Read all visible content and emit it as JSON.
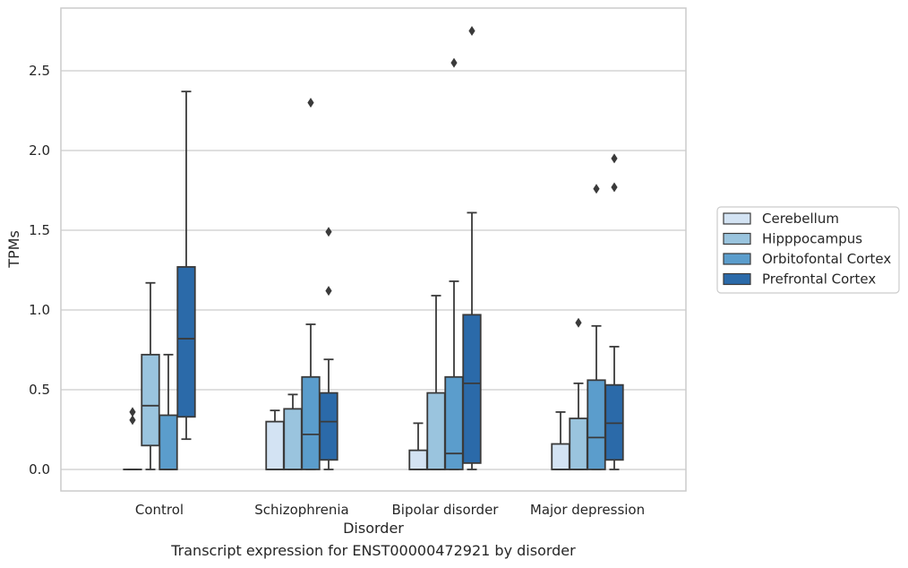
{
  "chart_data": {
    "type": "box",
    "xlabel": "Disorder",
    "ylabel": "TPMs",
    "ylim": [
      -0.13,
      2.9
    ],
    "yticks": [
      "0.0",
      "0.5",
      "1.0",
      "1.5",
      "2.0",
      "2.5"
    ],
    "grid": "horizontal",
    "legend_position": "right",
    "categories": [
      "Control",
      "Schizophrenia",
      "Bipolar disorder",
      "Major depression"
    ],
    "series": [
      {
        "name": "Cerebellum",
        "color": "#d3e3f3",
        "boxes": [
          {
            "whisker_low": 0.0,
            "q1": 0.0,
            "median": 0.0,
            "q3": 0.0,
            "whisker_high": 0.0,
            "outliers": []
          },
          {
            "whisker_low": 0.0,
            "q1": 0.0,
            "median": 0.0,
            "q3": 0.3,
            "whisker_high": 0.37,
            "outliers": []
          },
          {
            "whisker_low": 0.0,
            "q1": 0.0,
            "median": 0.0,
            "q3": 0.12,
            "whisker_high": 0.29,
            "outliers": []
          },
          {
            "whisker_low": 0.0,
            "q1": 0.0,
            "median": 0.0,
            "q3": 0.16,
            "whisker_high": 0.36,
            "outliers": []
          }
        ]
      },
      {
        "name": "Hipppocampus",
        "color": "#9ac4de",
        "boxes": [
          {
            "whisker_low": 0.0,
            "q1": 0.15,
            "median": 0.4,
            "q3": 0.72,
            "whisker_high": 1.17,
            "outliers": []
          },
          {
            "whisker_low": 0.0,
            "q1": 0.0,
            "median": 0.0,
            "q3": 0.38,
            "whisker_high": 0.47,
            "outliers": []
          },
          {
            "whisker_low": 0.0,
            "q1": 0.0,
            "median": 0.0,
            "q3": 0.48,
            "whisker_high": 1.09,
            "outliers": []
          },
          {
            "whisker_low": 0.0,
            "q1": 0.0,
            "median": 0.0,
            "q3": 0.32,
            "whisker_high": 0.54,
            "outliers": [
              0.92
            ]
          }
        ]
      },
      {
        "name": "Orbitofontal Cortex",
        "color": "#5b9dcc",
        "boxes": [
          {
            "whisker_low": 0.0,
            "q1": 0.0,
            "median": 0.0,
            "q3": 0.34,
            "whisker_high": 0.72,
            "outliers": []
          },
          {
            "whisker_low": 0.0,
            "q1": 0.0,
            "median": 0.22,
            "q3": 0.58,
            "whisker_high": 0.91,
            "outliers": [
              2.3
            ]
          },
          {
            "whisker_low": 0.0,
            "q1": 0.0,
            "median": 0.1,
            "q3": 0.58,
            "whisker_high": 1.18,
            "outliers": [
              2.55
            ]
          },
          {
            "whisker_low": 0.0,
            "q1": 0.0,
            "median": 0.2,
            "q3": 0.56,
            "whisker_high": 0.9,
            "outliers": [
              1.76
            ]
          }
        ]
      },
      {
        "name": "Prefrontal Cortex",
        "color": "#2b6aa9",
        "boxes": [
          {
            "whisker_low": 0.19,
            "q1": 0.33,
            "median": 0.82,
            "q3": 1.27,
            "whisker_high": 2.37,
            "outliers": []
          },
          {
            "whisker_low": 0.0,
            "q1": 0.06,
            "median": 0.3,
            "q3": 0.48,
            "whisker_high": 0.69,
            "outliers": [
              1.12,
              1.49
            ]
          },
          {
            "whisker_low": 0.0,
            "q1": 0.04,
            "median": 0.54,
            "q3": 0.97,
            "whisker_high": 1.61,
            "outliers": [
              2.75
            ]
          },
          {
            "whisker_low": 0.0,
            "q1": 0.06,
            "median": 0.29,
            "q3": 0.53,
            "whisker_high": 0.77,
            "outliers": [
              1.77,
              1.95
            ]
          }
        ]
      }
    ],
    "extra_outliers": [
      {
        "category": 0,
        "series": 0,
        "values": [
          0.31,
          0.36
        ]
      }
    ]
  },
  "caption": "Transcript expression for ENST00000472921 by disorder"
}
